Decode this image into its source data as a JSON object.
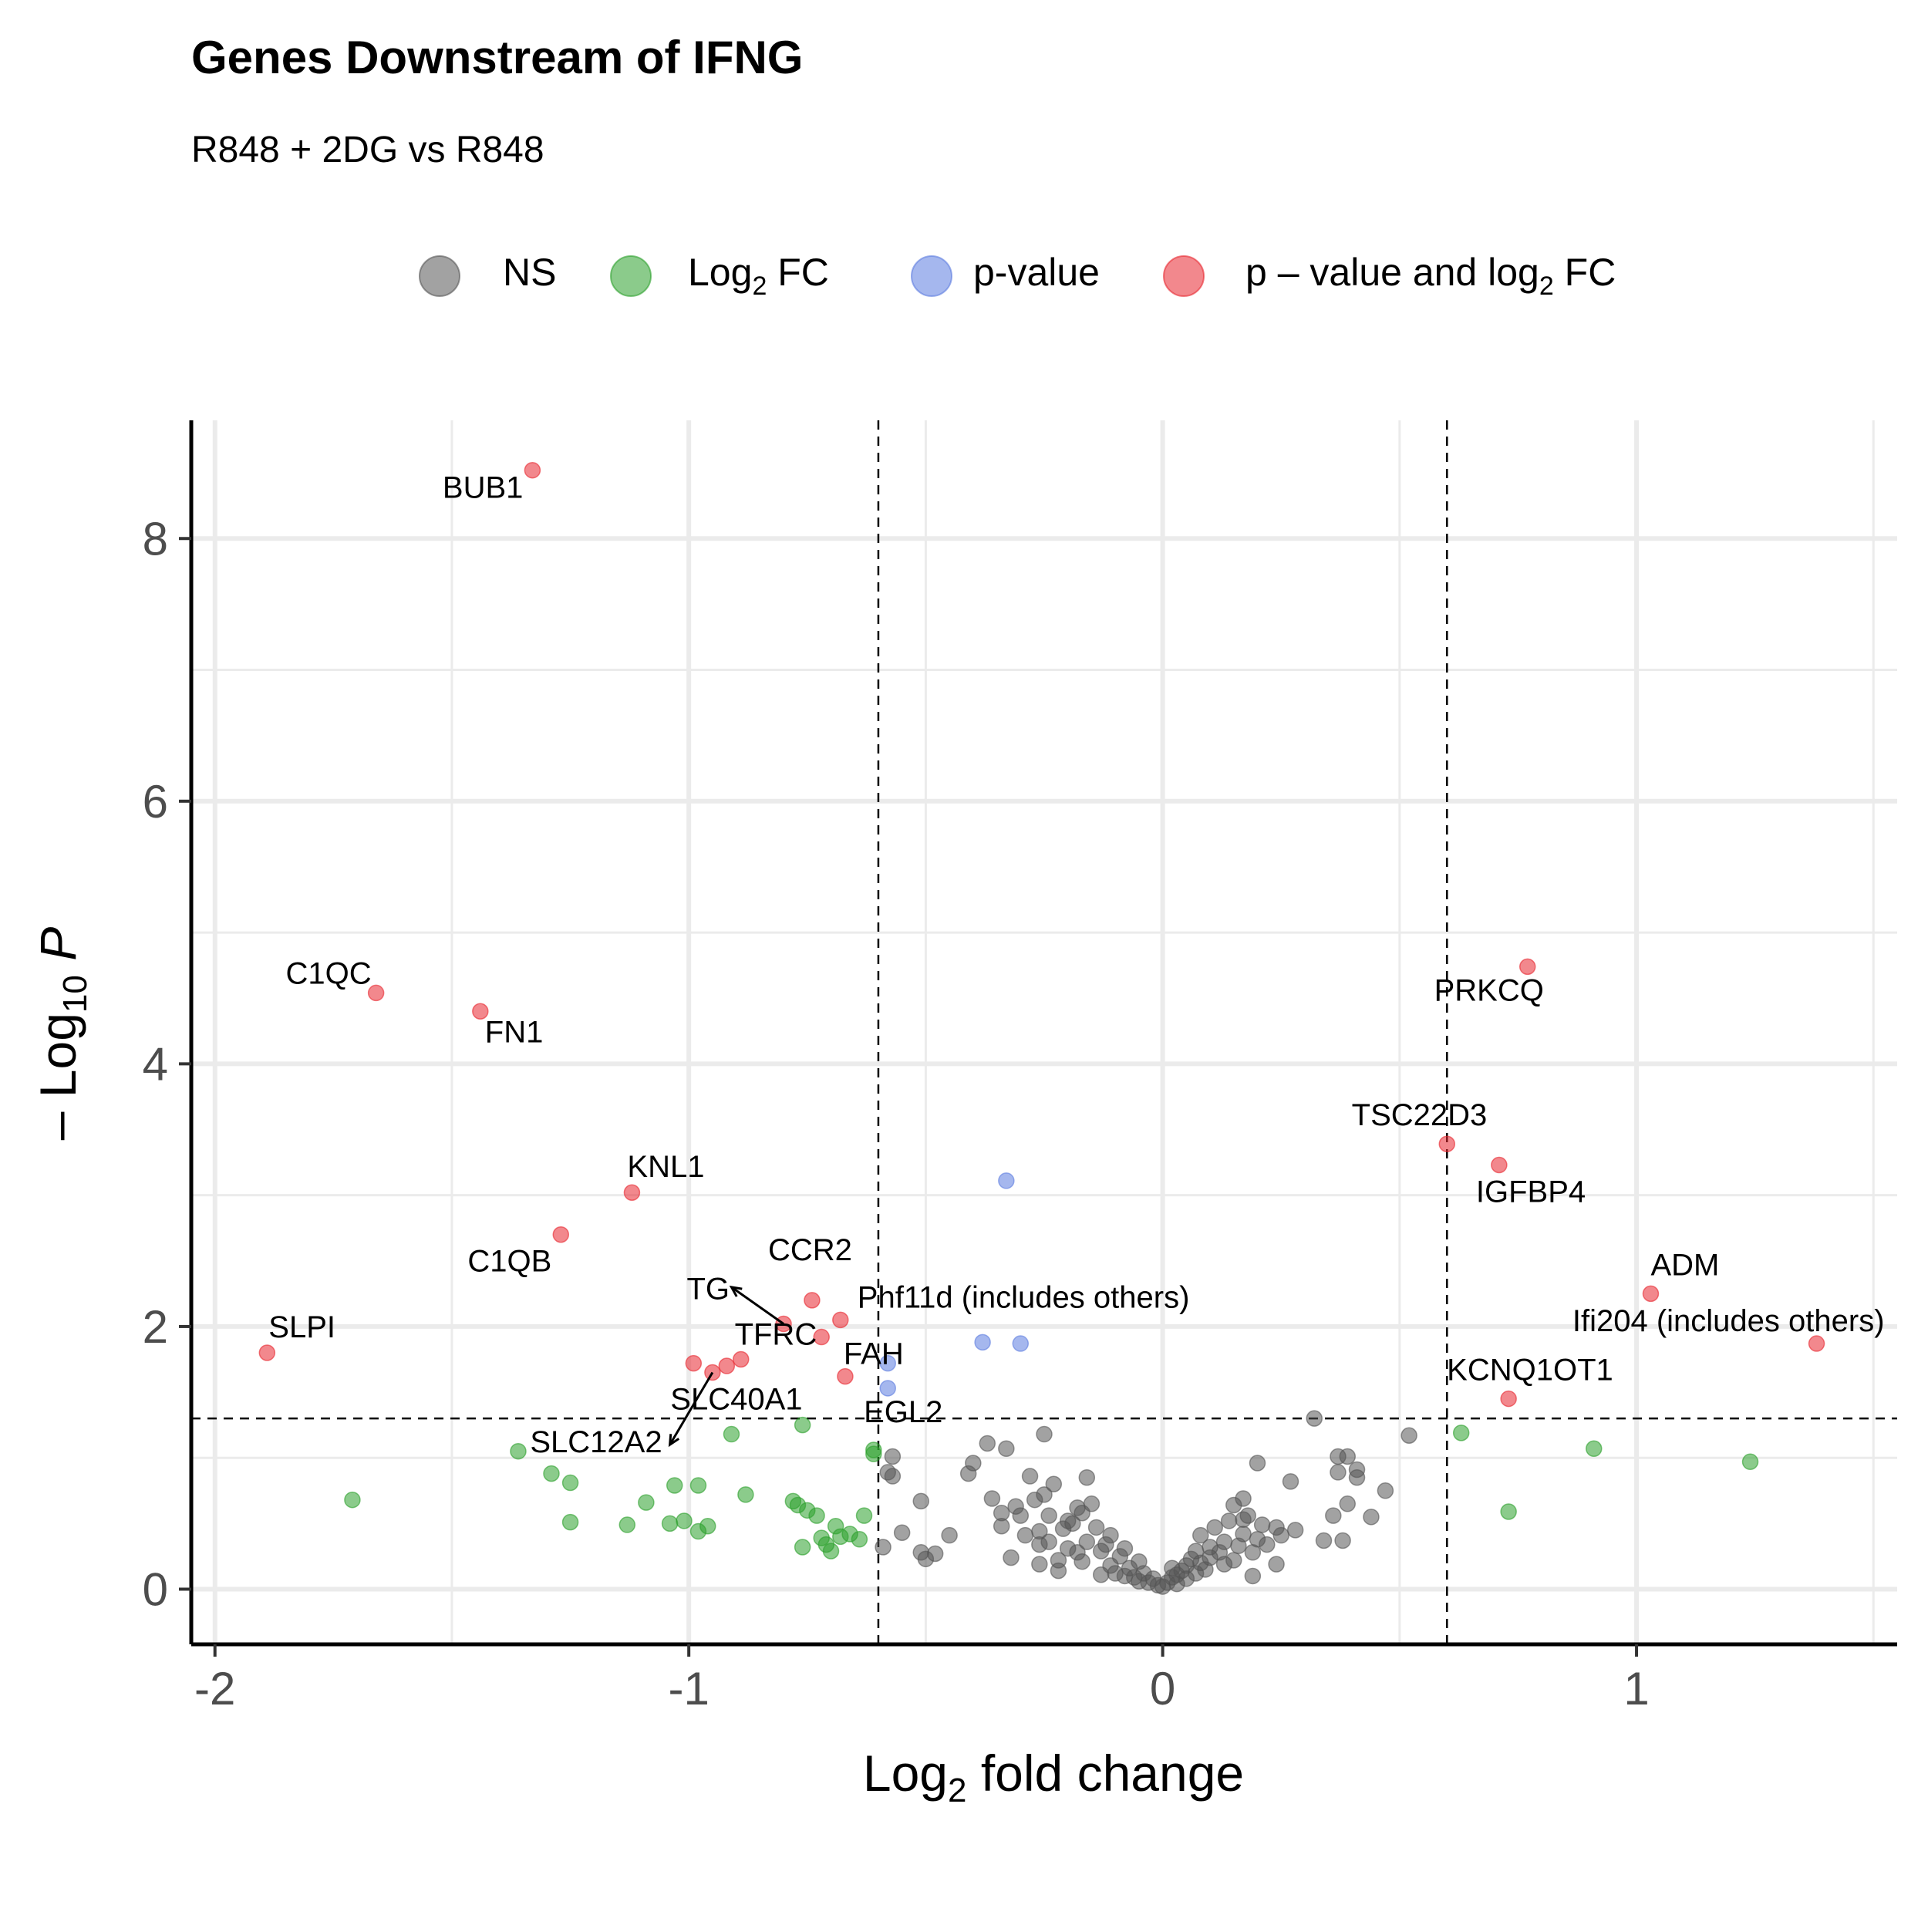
{
  "chart_data": {
    "type": "scatter",
    "title": "Genes Downstream of IFNG",
    "subtitle": "R848 + 2DG vs R848",
    "xlabel": {
      "base": "Log",
      "sub": "2",
      "rest": " fold change"
    },
    "ylabel": {
      "prefix": "– Log",
      "sub": "10",
      "italic": "P"
    },
    "xlim": [
      -2.05,
      1.55
    ],
    "ylim": [
      -0.42,
      8.9
    ],
    "x_ticks": [
      -2,
      -1,
      0,
      1
    ],
    "x_tick_labels": [
      "-2",
      "-1",
      "0",
      "1"
    ],
    "y_ticks": [
      0,
      2,
      4,
      6,
      8
    ],
    "y_tick_labels": [
      "0",
      "2",
      "4",
      "6",
      "8"
    ],
    "grid": true,
    "legend_position": "top",
    "thresholds": {
      "log2fc": [
        -0.6,
        0.6
      ],
      "neg_log10_p": 1.3
    },
    "colors": {
      "NS": "#555555",
      "FC": "#2ca02c",
      "P": "#5b7be0",
      "PFC": "#e8262f"
    },
    "legend": [
      {
        "key": "NS",
        "label": "NS"
      },
      {
        "key": "FC",
        "label": "Log",
        "sub": "2",
        "rest": " FC"
      },
      {
        "key": "P",
        "label": "p-value"
      },
      {
        "key": "PFC",
        "label": "p – value and log",
        "sub": "2",
        "rest": " FC"
      }
    ],
    "series": [
      {
        "key": "PFC",
        "points": [
          [
            -1.33,
            8.52
          ],
          [
            -1.66,
            4.54
          ],
          [
            -1.44,
            4.4
          ],
          [
            -1.12,
            3.02
          ],
          [
            -1.27,
            2.7
          ],
          [
            -0.74,
            2.2
          ],
          [
            -0.68,
            2.05
          ],
          [
            -0.8,
            2.02
          ],
          [
            -0.72,
            1.92
          ],
          [
            -1.89,
            1.8
          ],
          [
            -0.89,
            1.75
          ],
          [
            -0.92,
            1.7
          ],
          [
            -0.99,
            1.72
          ],
          [
            -0.95,
            1.65
          ],
          [
            -0.67,
            1.62
          ],
          [
            0.77,
            4.74
          ],
          [
            0.6,
            3.39
          ],
          [
            0.71,
            3.23
          ],
          [
            1.03,
            2.25
          ],
          [
            1.38,
            1.87
          ],
          [
            0.73,
            1.45
          ]
        ]
      },
      {
        "key": "P",
        "points": [
          [
            -0.33,
            3.11
          ],
          [
            -0.38,
            1.88
          ],
          [
            -0.3,
            1.87
          ],
          [
            -0.58,
            1.72
          ],
          [
            -0.58,
            1.53
          ]
        ]
      },
      {
        "key": "FC",
        "points": [
          [
            -1.71,
            0.68
          ],
          [
            -1.36,
            1.05
          ],
          [
            -1.29,
            0.88
          ],
          [
            -1.25,
            0.81
          ],
          [
            -1.25,
            0.51
          ],
          [
            -1.13,
            0.49
          ],
          [
            -1.09,
            0.66
          ],
          [
            -1.04,
            0.5
          ],
          [
            -1.03,
            0.79
          ],
          [
            -1.01,
            0.52
          ],
          [
            -0.98,
            0.79
          ],
          [
            -0.98,
            0.44
          ],
          [
            -0.96,
            0.48
          ],
          [
            -0.91,
            1.18
          ],
          [
            -0.88,
            0.72
          ],
          [
            -0.78,
            0.67
          ],
          [
            -0.77,
            0.64
          ],
          [
            -0.76,
            1.25
          ],
          [
            -0.75,
            0.6
          ],
          [
            -0.73,
            0.56
          ],
          [
            -0.72,
            0.39
          ],
          [
            -0.69,
            0.48
          ],
          [
            -0.68,
            0.4
          ],
          [
            -0.66,
            0.42
          ],
          [
            -0.64,
            0.38
          ],
          [
            -0.63,
            0.56
          ],
          [
            -0.61,
            1.06
          ],
          [
            -0.61,
            1.03
          ],
          [
            -0.76,
            0.32
          ],
          [
            -0.7,
            0.29
          ],
          [
            -0.71,
            0.34
          ],
          [
            0.63,
            1.19
          ],
          [
            0.91,
            1.07
          ],
          [
            1.24,
            0.97
          ],
          [
            0.73,
            0.59
          ]
        ]
      },
      {
        "key": "NS",
        "points": [
          [
            -0.59,
            0.32
          ],
          [
            -0.58,
            0.89
          ],
          [
            -0.57,
            1.01
          ],
          [
            -0.57,
            0.86
          ],
          [
            -0.55,
            0.43
          ],
          [
            -0.51,
            0.67
          ],
          [
            -0.51,
            0.28
          ],
          [
            -0.5,
            0.23
          ],
          [
            -0.48,
            0.27
          ],
          [
            -0.45,
            0.41
          ],
          [
            -0.41,
            0.88
          ],
          [
            -0.4,
            0.96
          ],
          [
            -0.37,
            1.11
          ],
          [
            -0.36,
            0.69
          ],
          [
            -0.34,
            0.58
          ],
          [
            -0.34,
            0.48
          ],
          [
            -0.33,
            1.07
          ],
          [
            -0.32,
            0.24
          ],
          [
            -0.31,
            0.63
          ],
          [
            -0.3,
            0.56
          ],
          [
            -0.29,
            0.41
          ],
          [
            -0.28,
            0.86
          ],
          [
            -0.27,
            0.68
          ],
          [
            -0.26,
            0.44
          ],
          [
            -0.26,
            0.34
          ],
          [
            -0.26,
            0.19
          ],
          [
            -0.25,
            0.72
          ],
          [
            -0.25,
            1.18
          ],
          [
            -0.24,
            0.56
          ],
          [
            -0.24,
            0.36
          ],
          [
            -0.23,
            0.8
          ],
          [
            -0.22,
            0.22
          ],
          [
            -0.22,
            0.14
          ],
          [
            -0.21,
            0.46
          ],
          [
            -0.2,
            0.31
          ],
          [
            -0.2,
            0.52
          ],
          [
            -0.18,
            0.28
          ],
          [
            -0.18,
            0.62
          ],
          [
            -0.17,
            0.58
          ],
          [
            -0.17,
            0.21
          ],
          [
            -0.16,
            0.36
          ],
          [
            -0.16,
            0.85
          ],
          [
            -0.15,
            0.65
          ],
          [
            -0.14,
            0.47
          ],
          [
            -0.13,
            0.11
          ],
          [
            -0.13,
            0.29
          ],
          [
            -0.12,
            0.34
          ],
          [
            -0.11,
            0.18
          ],
          [
            -0.11,
            0.41
          ],
          [
            -0.1,
            0.12
          ],
          [
            -0.09,
            0.25
          ],
          [
            -0.08,
            0.1
          ],
          [
            -0.08,
            0.31
          ],
          [
            -0.07,
            0.16
          ],
          [
            -0.06,
            0.09
          ],
          [
            -0.05,
            0.21
          ],
          [
            -0.05,
            0.06
          ],
          [
            -0.04,
            0.12
          ],
          [
            -0.03,
            0.05
          ],
          [
            -0.02,
            0.08
          ],
          [
            -0.01,
            0.03
          ],
          [
            0.0,
            0.02
          ],
          [
            0.01,
            0.05
          ],
          [
            0.02,
            0.09
          ],
          [
            0.02,
            0.16
          ],
          [
            0.03,
            0.11
          ],
          [
            0.03,
            0.04
          ],
          [
            0.04,
            0.14
          ],
          [
            0.05,
            0.18
          ],
          [
            0.05,
            0.08
          ],
          [
            0.06,
            0.23
          ],
          [
            0.07,
            0.12
          ],
          [
            0.07,
            0.29
          ],
          [
            0.08,
            0.2
          ],
          [
            0.08,
            0.41
          ],
          [
            0.09,
            0.15
          ],
          [
            0.1,
            0.32
          ],
          [
            0.1,
            0.24
          ],
          [
            0.11,
            0.47
          ],
          [
            0.12,
            0.28
          ],
          [
            0.13,
            0.36
          ],
          [
            0.13,
            0.19
          ],
          [
            0.14,
            0.52
          ],
          [
            0.15,
            0.64
          ],
          [
            0.15,
            0.22
          ],
          [
            0.16,
            0.33
          ],
          [
            0.17,
            0.42
          ],
          [
            0.17,
            0.69
          ],
          [
            0.18,
            0.56
          ],
          [
            0.19,
            0.28
          ],
          [
            0.19,
            0.1
          ],
          [
            0.2,
            0.38
          ],
          [
            0.2,
            0.96
          ],
          [
            0.21,
            0.49
          ],
          [
            0.22,
            0.34
          ],
          [
            0.24,
            0.47
          ],
          [
            0.24,
            0.19
          ],
          [
            0.25,
            0.41
          ],
          [
            0.27,
            0.82
          ],
          [
            0.28,
            0.45
          ],
          [
            0.32,
            1.3
          ],
          [
            0.34,
            0.37
          ],
          [
            0.36,
            0.56
          ],
          [
            0.37,
            1.01
          ],
          [
            0.37,
            0.89
          ],
          [
            0.38,
            0.37
          ],
          [
            0.39,
            0.65
          ],
          [
            0.39,
            1.01
          ],
          [
            0.41,
            0.91
          ],
          [
            0.41,
            0.85
          ],
          [
            0.44,
            0.55
          ],
          [
            0.47,
            0.75
          ],
          [
            0.52,
            1.17
          ],
          [
            0.17,
            0.53
          ],
          [
            -0.19,
            0.5
          ]
        ]
      }
    ],
    "labels": [
      {
        "text": "BUB1",
        "x": -1.33,
        "y": 8.52,
        "ha": "end",
        "dx": -12,
        "dy": 36
      },
      {
        "text": "C1QC",
        "x": -1.66,
        "y": 4.54,
        "ha": "end",
        "dx": -6,
        "dy": -12
      },
      {
        "text": "FN1",
        "x": -1.44,
        "y": 4.4,
        "ha": "start",
        "dx": 6,
        "dy": 40
      },
      {
        "text": "KNL1",
        "x": -1.12,
        "y": 3.02,
        "ha": "start",
        "dx": -6,
        "dy": -20
      },
      {
        "text": "C1QB",
        "x": -1.27,
        "y": 2.7,
        "ha": "end",
        "dx": -12,
        "dy": 48
      },
      {
        "text": "CCR2",
        "x": -0.74,
        "y": 2.2,
        "ha": "end",
        "dx": 52,
        "dy": -52
      },
      {
        "text": "Phf11d (includes others)",
        "x": -0.68,
        "y": 2.05,
        "ha": "start",
        "dx": 22,
        "dy": -16
      },
      {
        "text": "TG",
        "x": -0.8,
        "y": 2.02,
        "ha": "end",
        "dx": -70,
        "dy": -32
      },
      {
        "text": "TFRC",
        "x": -0.72,
        "y": 1.92,
        "ha": "end",
        "dx": -6,
        "dy": 10
      },
      {
        "text": "FAH",
        "x": -0.67,
        "y": 1.62,
        "ha": "start",
        "dx": -2,
        "dy": -16
      },
      {
        "text": "SLPI",
        "x": -1.89,
        "y": 1.8,
        "ha": "start",
        "dx": 2,
        "dy": -20
      },
      {
        "text": "SLC40A1",
        "x": -0.99,
        "y": 1.72,
        "ha": "start",
        "dx": -30,
        "dy": 60
      },
      {
        "text": "SLC12A2",
        "x": -1.04,
        "y": 1.1,
        "ha": "end",
        "dx": -10,
        "dy": 10
      },
      {
        "text": "EGL2",
        "x": -0.58,
        "y": 1.53,
        "ha": "middle",
        "dx": 20,
        "dy": 44
      },
      {
        "text": "PRKCQ",
        "x": 0.77,
        "y": 4.74,
        "ha": "middle",
        "dx": -50,
        "dy": 44
      },
      {
        "text": "TSC22D3",
        "x": 0.6,
        "y": 3.39,
        "ha": "end",
        "dx": 52,
        "dy": -24
      },
      {
        "text": "IGFBP4",
        "x": 0.71,
        "y": 3.23,
        "ha": "start",
        "dx": -30,
        "dy": 48
      },
      {
        "text": "ADM",
        "x": 1.03,
        "y": 2.25,
        "ha": "start",
        "dx": 0,
        "dy": -24
      },
      {
        "text": "Ifi204 (includes others)",
        "x": 1.38,
        "y": 1.87,
        "ha": "end",
        "dx": 88,
        "dy": -16
      },
      {
        "text": "KCNQ1OT1",
        "x": 0.73,
        "y": 1.45,
        "ha": "start",
        "dx": -80,
        "dy": -24
      }
    ],
    "label_arrows": [
      {
        "from": [
          -0.8,
          2.02
        ],
        "to": [
          -0.91,
          2.3
        ]
      },
      {
        "from": [
          -0.95,
          1.65
        ],
        "to": [
          -1.04,
          1.1
        ]
      }
    ]
  }
}
